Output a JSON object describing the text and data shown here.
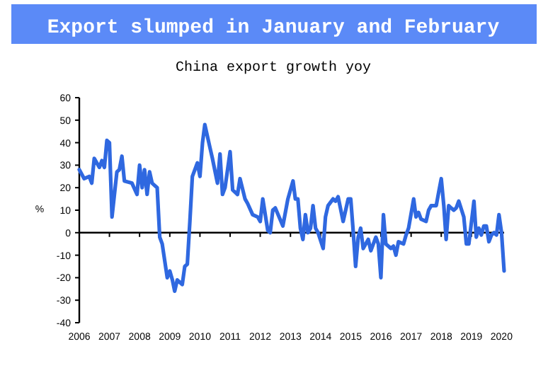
{
  "chart_data": {
    "type": "line",
    "title": "Export slumped in January and February",
    "subtitle": "China export growth yoy",
    "ylabel": "%",
    "x": [
      "2006-01",
      "2006-03",
      "2006-05",
      "2006-06",
      "2006-07",
      "2006-09",
      "2006-10",
      "2006-11",
      "2006-12",
      "2007-01",
      "2007-02",
      "2007-04",
      "2007-05",
      "2007-06",
      "2007-07",
      "2007-10",
      "2007-12",
      "2008-01",
      "2008-02",
      "2008-03",
      "2008-04",
      "2008-05",
      "2008-06",
      "2008-08",
      "2008-09",
      "2008-10",
      "2008-12",
      "2009-01",
      "2009-02",
      "2009-03",
      "2009-04",
      "2009-06",
      "2009-07",
      "2009-08",
      "2009-09",
      "2009-10",
      "2009-12",
      "2010-01",
      "2010-02",
      "2010-03",
      "2010-05",
      "2010-06",
      "2010-08",
      "2010-09",
      "2010-10",
      "2010-11",
      "2011-01",
      "2011-02",
      "2011-04",
      "2011-05",
      "2011-07",
      "2011-08",
      "2011-10",
      "2011-12",
      "2012-01",
      "2012-02",
      "2012-04",
      "2012-05",
      "2012-06",
      "2012-07",
      "2012-10",
      "2012-12",
      "2013-02",
      "2013-03",
      "2013-04",
      "2013-05",
      "2013-06",
      "2013-07",
      "2013-08",
      "2013-09",
      "2013-10",
      "2013-11",
      "2013-12",
      "2014-02",
      "2014-03",
      "2014-04",
      "2014-06",
      "2014-07",
      "2014-08",
      "2014-10",
      "2014-12",
      "2015-01",
      "2015-02",
      "2015-03",
      "2015-04",
      "2015-05",
      "2015-06",
      "2015-07",
      "2015-08",
      "2015-09",
      "2015-11",
      "2015-12",
      "2016-01",
      "2016-02",
      "2016-03",
      "2016-05",
      "2016-06",
      "2016-07",
      "2016-08",
      "2016-10",
      "2016-11",
      "2016-12",
      "2017-02",
      "2017-03",
      "2017-04",
      "2017-05",
      "2017-07",
      "2017-08",
      "2017-09",
      "2017-11",
      "2017-12",
      "2018-01",
      "2018-02",
      "2018-03",
      "2018-04",
      "2018-05",
      "2018-06",
      "2018-07",
      "2018-08",
      "2018-10",
      "2018-11",
      "2018-12",
      "2019-02",
      "2019-03",
      "2019-04",
      "2019-05",
      "2019-06",
      "2019-07",
      "2019-08",
      "2019-09",
      "2019-10",
      "2019-11",
      "2019-12",
      "2020-01",
      "2020-02"
    ],
    "series": [
      {
        "color": "#2f68e0",
        "values": [
          28,
          24,
          25,
          22,
          33,
          29,
          32,
          29,
          41,
          40,
          7,
          27,
          28,
          34,
          23,
          22,
          17,
          30,
          20,
          28,
          17,
          27,
          22,
          20,
          -2,
          -5,
          -20,
          -17,
          -21,
          -26,
          -21,
          -23,
          -15,
          -14,
          5,
          25,
          31,
          25,
          40,
          48,
          38,
          33,
          22,
          35,
          17,
          20,
          36,
          19,
          17,
          24,
          15,
          13,
          8,
          7,
          5,
          15,
          1,
          0,
          10,
          11,
          3,
          15,
          23,
          15,
          15,
          2,
          -3,
          8,
          0,
          2,
          12,
          2,
          0,
          -7,
          7,
          12,
          15,
          14,
          16,
          5,
          15,
          15,
          0,
          -15,
          -2,
          2,
          -7,
          -5,
          -3,
          -8,
          -2,
          -5,
          -20,
          8,
          -5,
          -7,
          -6,
          -10,
          -4,
          -5,
          -1,
          2,
          15,
          7,
          9,
          6,
          5,
          10,
          12,
          12,
          18,
          24,
          12,
          -3,
          12,
          11,
          10,
          11,
          14,
          7,
          -5,
          -5,
          14,
          -2,
          2,
          -1,
          3,
          3,
          -4,
          -1,
          0,
          -1,
          8,
          0,
          -17
        ]
      }
    ],
    "xlim": [
      "2006-01",
      "2020-02"
    ],
    "xticks": [
      "2006",
      "2007",
      "2008",
      "2009",
      "2010",
      "2011",
      "2012",
      "2013",
      "2014",
      "2015",
      "2016",
      "2017",
      "2018",
      "2019",
      "2020"
    ],
    "ylim": [
      -40,
      60
    ],
    "yticks": [
      -40,
      -30,
      -20,
      -10,
      0,
      10,
      20,
      30,
      40,
      50,
      60
    ],
    "marker": "none",
    "line_style": "solid"
  }
}
